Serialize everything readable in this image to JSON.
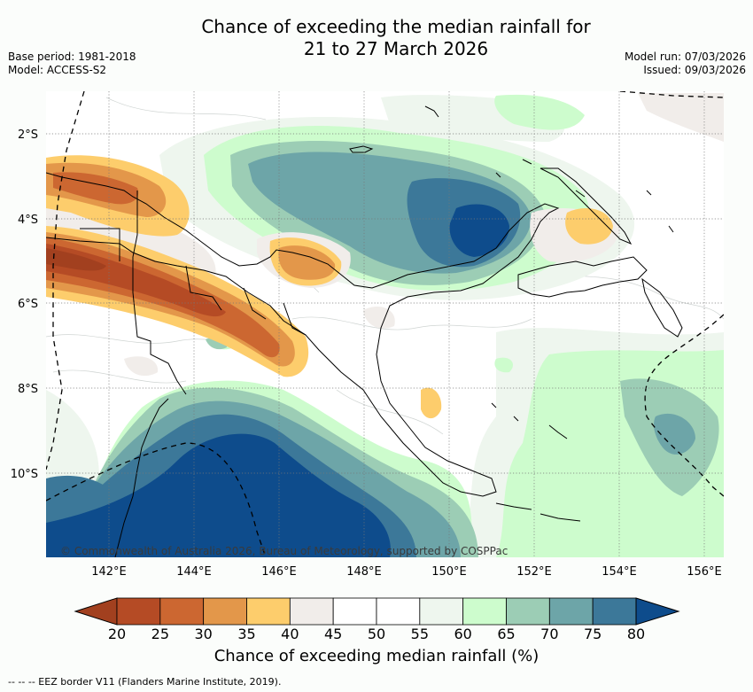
{
  "header": {
    "title_line1": "Chance of exceeding the median rainfall for",
    "title_line2": "21 to 27 March 2026",
    "base_period": "Base period: 1981-2018",
    "model": "Model: ACCESS-S2",
    "model_run": "Model run: 07/03/2026",
    "issued": "Issued: 09/03/2026"
  },
  "map": {
    "copyright": "© Commonwealth of Australia 2026, Bureau of Meteorology, supported by COSPPac",
    "lat_labels": [
      "2°S",
      "4°S",
      "6°S",
      "8°S",
      "10°S"
    ],
    "lon_labels": [
      "142°E",
      "144°E",
      "146°E",
      "148°E",
      "150°E",
      "152°E",
      "154°E",
      "156°E"
    ]
  },
  "colorbar": {
    "labels": [
      "20",
      "25",
      "30",
      "35",
      "40",
      "45",
      "50",
      "55",
      "60",
      "65",
      "70",
      "75",
      "80"
    ],
    "colors": [
      "#a2401f",
      "#b54b25",
      "#cc6731",
      "#e3974a",
      "#fdcd6c",
      "#f1edea",
      "#ffffff",
      "#ffffff",
      "#eef6ee",
      "#cdfccd",
      "#9ccdb5",
      "#6da5a8",
      "#3c7899",
      "#0e4c8c"
    ],
    "title": "Chance of exceeding median rainfall (%)"
  },
  "footer": {
    "eez_legend": "--  --  -- EEZ border V11 (Flanders Marine Institute, 2019)."
  }
}
